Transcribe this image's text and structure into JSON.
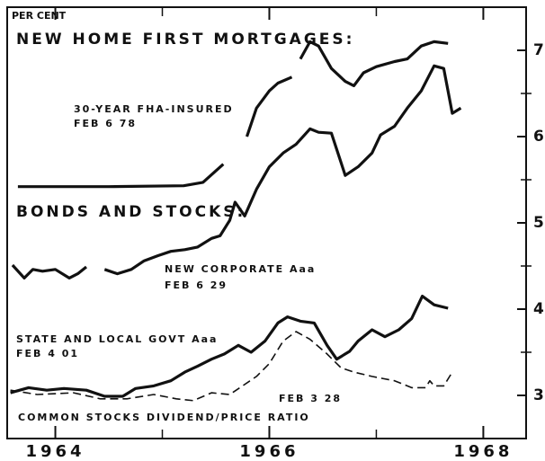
{
  "chart_data": {
    "type": "line",
    "y_label": "PER CENT",
    "annotations": [
      "NEW HOME FIRST MORTGAGES:",
      "FEB 6 78",
      "BONDS AND STOCKS:",
      "FEB 6 29",
      "FEB 4 01",
      "FEB 3 28"
    ],
    "xlim": [
      1963.55,
      1968.4
    ],
    "xticks": [
      1964,
      1966,
      1968
    ],
    "xminor": [
      1965,
      1967
    ],
    "ylim": [
      2.5,
      7.5
    ],
    "yticks": [
      3,
      4,
      5,
      6,
      7
    ],
    "yminor": [
      3.5,
      4.5,
      5.5,
      6.5
    ],
    "grid": false,
    "series": [
      {
        "name": "30-YEAR FHA-INSURED",
        "color": "#111",
        "dash": false,
        "x": [
          1963.65,
          1964.5,
          1965.2,
          1965.38,
          1965.57,
          1965.68,
          1965.79,
          1965.88,
          1966.0,
          1966.08,
          1966.21,
          1966.25,
          1966.29,
          1966.38,
          1966.46,
          1966.58,
          1966.71,
          1966.79,
          1966.88,
          1967.0,
          1967.17,
          1967.29,
          1967.42,
          1967.54,
          1967.67
        ],
        "values": [
          5.42,
          5.42,
          5.43,
          5.47,
          5.68,
          null,
          6.0,
          6.33,
          6.53,
          6.62,
          6.69,
          null,
          6.9,
          7.1,
          7.05,
          6.79,
          6.64,
          6.59,
          6.74,
          6.81,
          6.87,
          6.9,
          7.05,
          7.1,
          7.08
        ]
      },
      {
        "name": "NEW CORPORATE Aaa",
        "color": "#111",
        "dash": false,
        "x": [
          1963.6,
          1963.71,
          1963.79,
          1963.88,
          1964.0,
          1964.13,
          1964.21,
          1964.29,
          1964.38,
          1964.46,
          1964.58,
          1964.71,
          1964.83,
          1964.96,
          1965.08,
          1965.21,
          1965.33,
          1965.46,
          1965.54,
          1965.63,
          1965.68,
          1965.77,
          1965.88,
          1966.0,
          1966.13,
          1966.25,
          1966.38,
          1966.46,
          1966.58,
          1966.71,
          1966.83,
          1966.96,
          1967.04,
          1967.17,
          1967.29,
          1967.42,
          1967.54,
          1967.63,
          1967.71,
          1967.79
        ],
        "values": [
          4.51,
          4.36,
          4.46,
          4.44,
          4.46,
          4.36,
          4.41,
          4.49,
          null,
          4.46,
          4.41,
          4.46,
          4.56,
          4.62,
          4.67,
          4.69,
          4.72,
          4.82,
          4.85,
          5.03,
          5.24,
          5.08,
          5.39,
          5.65,
          5.81,
          5.91,
          6.09,
          6.05,
          6.04,
          5.55,
          5.65,
          5.81,
          6.02,
          6.12,
          6.33,
          6.53,
          6.82,
          6.79,
          6.27,
          6.33
        ]
      },
      {
        "name": "STATE AND LOCAL GOVT Aaa",
        "color": "#111",
        "dash": false,
        "x": [
          1963.58,
          1963.75,
          1963.92,
          1964.08,
          1964.29,
          1964.46,
          1964.63,
          1964.75,
          1964.92,
          1965.08,
          1965.21,
          1965.33,
          1965.46,
          1965.58,
          1965.71,
          1965.83,
          1965.96,
          1966.08,
          1966.17,
          1966.29,
          1966.42,
          1966.54,
          1966.63,
          1966.75,
          1966.83,
          1966.96,
          1967.08,
          1967.21,
          1967.33,
          1967.43,
          1967.54,
          1967.67
        ],
        "values": [
          3.03,
          3.09,
          3.06,
          3.08,
          3.06,
          2.99,
          2.99,
          3.08,
          3.11,
          3.17,
          3.27,
          3.34,
          3.42,
          3.48,
          3.58,
          3.5,
          3.63,
          3.84,
          3.91,
          3.86,
          3.84,
          3.58,
          3.42,
          3.51,
          3.63,
          3.76,
          3.68,
          3.76,
          3.89,
          4.15,
          4.05,
          4.01
        ]
      },
      {
        "name": "COMMON STOCKS DIVIDEND/PRICE RATIO",
        "color": "#111",
        "dash": true,
        "x": [
          1963.58,
          1963.83,
          1964.17,
          1964.42,
          1964.67,
          1964.92,
          1965.13,
          1965.29,
          1965.46,
          1965.63,
          1965.75,
          1965.88,
          1966.0,
          1966.13,
          1966.25,
          1966.38,
          1966.54,
          1966.67,
          1966.79,
          1966.96,
          1967.17,
          1967.33,
          1967.46,
          1967.5,
          1967.54,
          1967.63,
          1967.71
        ],
        "values": [
          3.06,
          3.01,
          3.03,
          2.96,
          2.96,
          3.01,
          2.96,
          2.94,
          3.03,
          3.01,
          3.11,
          3.22,
          3.37,
          3.63,
          3.74,
          3.65,
          3.48,
          3.32,
          3.27,
          3.22,
          3.17,
          3.09,
          3.09,
          3.17,
          3.11,
          3.11,
          3.27
        ]
      }
    ]
  }
}
